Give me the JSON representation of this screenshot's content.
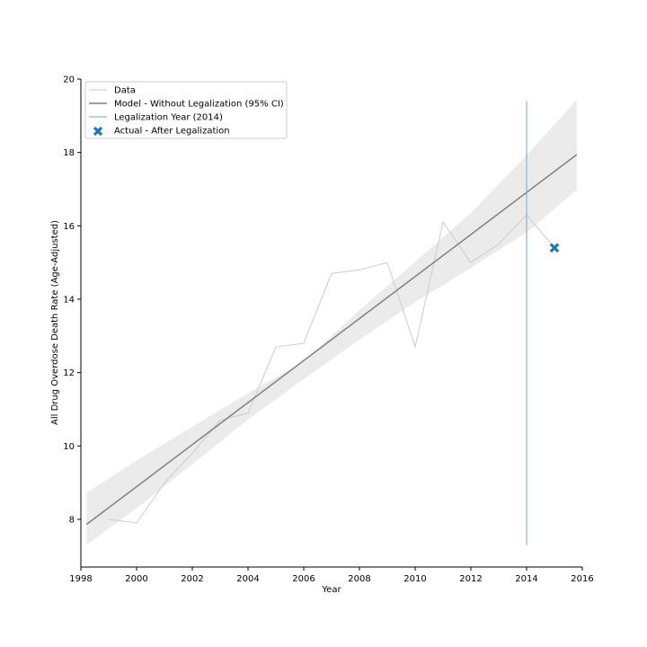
{
  "chart_data": {
    "type": "line",
    "title": "",
    "xlabel": "Year",
    "ylabel": "All Drug Overdose Death Rate (Age-Adjusted)",
    "xlim": [
      1998,
      2016
    ],
    "ylim": [
      6.7,
      20
    ],
    "xticks": [
      "1998",
      "2000",
      "2002",
      "2004",
      "2006",
      "2008",
      "2010",
      "2012",
      "2014",
      "2016"
    ],
    "yticks": [
      "8",
      "10",
      "12",
      "14",
      "16",
      "18",
      "20"
    ],
    "grid": false,
    "legend_position": "top-left",
    "series": [
      {
        "name": "Data",
        "color": "#cccccc",
        "points": [
          [
            1999,
            8.0
          ],
          [
            2000,
            7.9
          ],
          [
            2001,
            9.0
          ],
          [
            2002,
            9.8
          ],
          [
            2003,
            10.7
          ],
          [
            2004,
            10.9
          ],
          [
            2005,
            12.7
          ],
          [
            2006,
            12.8
          ],
          [
            2007,
            14.7
          ],
          [
            2008,
            14.8
          ],
          [
            2009,
            15.0
          ],
          [
            2010,
            12.7
          ],
          [
            2011,
            16.1
          ],
          [
            2012,
            15.0
          ],
          [
            2013,
            15.5
          ],
          [
            2014,
            16.3
          ],
          [
            2015,
            15.4
          ]
        ]
      },
      {
        "name": "Model - Without Legalization (95% CI)",
        "color": "#808080",
        "line": [
          [
            1998.2,
            7.86
          ],
          [
            2015.8,
            17.94
          ]
        ],
        "ci_upper": [
          [
            1998.2,
            8.72
          ],
          [
            2000,
            9.6
          ],
          [
            2002,
            10.53
          ],
          [
            2004,
            11.44
          ],
          [
            2006,
            12.3
          ],
          [
            2008,
            13.7
          ],
          [
            2010,
            15.02
          ],
          [
            2012,
            16.35
          ],
          [
            2014,
            17.92
          ],
          [
            2015.8,
            19.43
          ]
        ],
        "ci_lower": [
          [
            1998.2,
            7.3
          ],
          [
            2000,
            8.3
          ],
          [
            2002,
            9.5
          ],
          [
            2004,
            10.72
          ],
          [
            2006,
            11.82
          ],
          [
            2008,
            12.9
          ],
          [
            2010,
            13.92
          ],
          [
            2012,
            14.85
          ],
          [
            2014,
            15.82
          ],
          [
            2015.8,
            16.98
          ]
        ]
      },
      {
        "name": "Legalization Year (2014)",
        "color": "#6baed6",
        "x": 2014,
        "y_range": [
          7.3,
          19.4
        ]
      },
      {
        "name": "Actual - After Legalization",
        "color": "#1f77b4",
        "marker": "X",
        "points": [
          [
            2015,
            15.4
          ]
        ]
      }
    ]
  }
}
